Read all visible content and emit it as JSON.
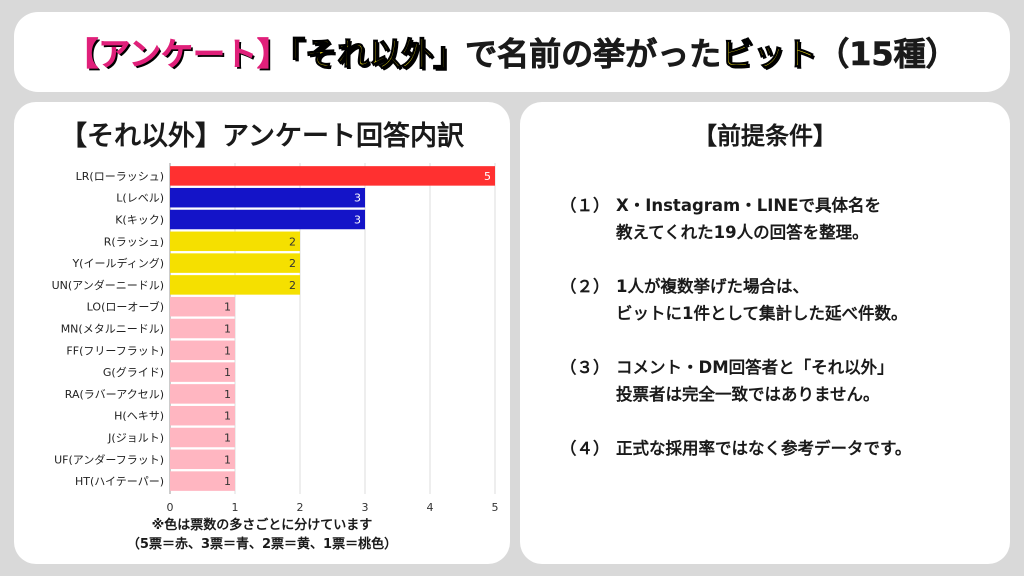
{
  "banner": {
    "part1": "【アンケート】",
    "part2": "「それ以外」",
    "part3": "で名前の挙がった",
    "part4": "ビット",
    "part5": "（15種）"
  },
  "chart_data": {
    "type": "bar",
    "orientation": "horizontal",
    "title": "【それ以外】アンケート回答内訳",
    "categories": [
      "LR(ローラッシュ)",
      "L(レベル)",
      "K(キック)",
      "R(ラッシュ)",
      "Y(イールディング)",
      "UN(アンダーニードル)",
      "LO(ローオーブ)",
      "MN(メタルニードル)",
      "FF(フリーフラット)",
      "G(グライド)",
      "RA(ラバーアクセル)",
      "H(ヘキサ)",
      "J(ジョルト)",
      "UF(アンダーフラット)",
      "HT(ハイテーパー)"
    ],
    "values": [
      5,
      3,
      3,
      2,
      2,
      2,
      1,
      1,
      1,
      1,
      1,
      1,
      1,
      1,
      1
    ],
    "colors": [
      "#ff3030",
      "#1414c8",
      "#1414c8",
      "#f5e000",
      "#f5e000",
      "#f5e000",
      "#ffb6c1",
      "#ffb6c1",
      "#ffb6c1",
      "#ffb6c1",
      "#ffb6c1",
      "#ffb6c1",
      "#ffb6c1",
      "#ffb6c1",
      "#ffb6c1"
    ],
    "xlim": [
      0,
      5
    ],
    "xticks": [
      0,
      1,
      2,
      3,
      4,
      5
    ],
    "grid": true,
    "data_labels": true
  },
  "chart_note": {
    "line1": "※色は票数の多さごとに分けています",
    "line2": "（5票＝赤、3票＝青、2票＝黄、1票＝桃色）"
  },
  "conditions": {
    "title": "【前提条件】",
    "items": [
      {
        "num": "（１）",
        "lines": [
          "X・Instagram・LINEで具体名を",
          "教えてくれた19人の回答を整理。"
        ]
      },
      {
        "num": "（２）",
        "lines": [
          "1人が複数挙げた場合は、",
          "ビットに1件として集計した延べ件数。"
        ]
      },
      {
        "num": "（３）",
        "lines": [
          "コメント・DM回答者と「それ以外」",
          "投票者は完全一致ではありません。"
        ]
      },
      {
        "num": "（４）",
        "lines": [
          "正式な採用率ではなく参考データです。"
        ]
      }
    ]
  }
}
